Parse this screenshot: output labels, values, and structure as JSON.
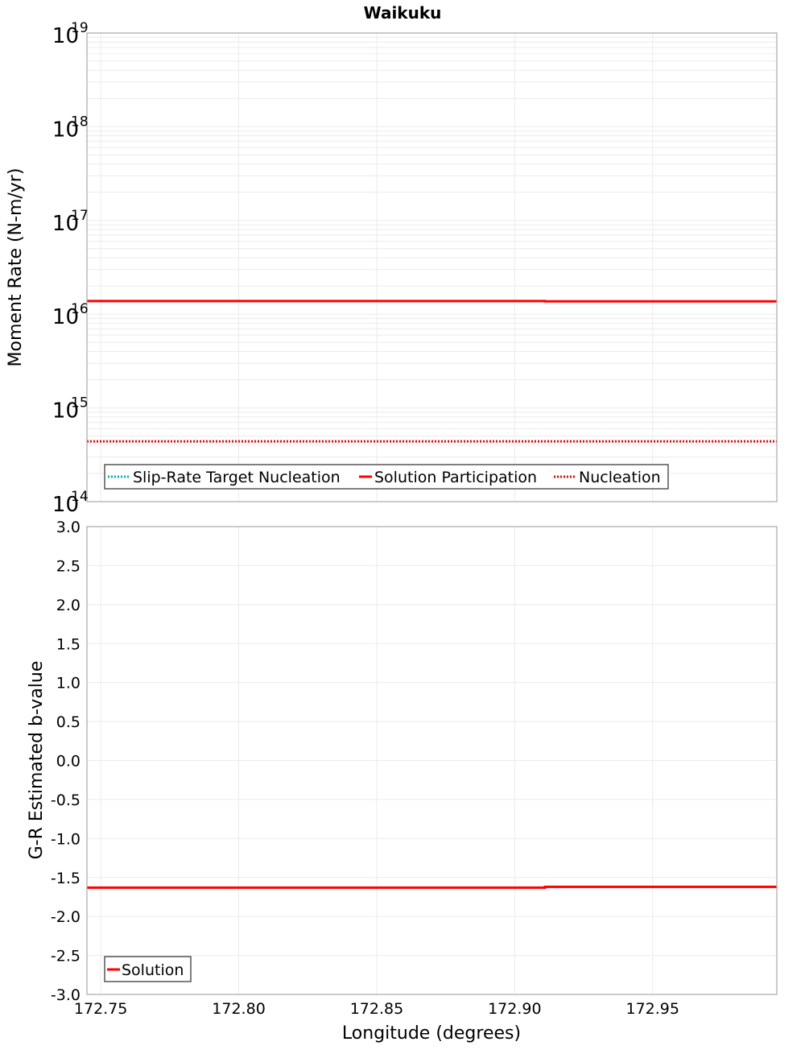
{
  "title": "Waikuku",
  "chart_data": [
    {
      "type": "line",
      "title": "Waikuku",
      "xlabel": "Longitude (degrees)",
      "ylabel": "Moment Rate (N-m/yr)",
      "yscale": "log",
      "ylim": [
        100000000000000.0,
        1e+19
      ],
      "xlim": [
        172.745,
        172.995
      ],
      "grid": true,
      "y_tick_labels": [
        {
          "base": "10",
          "exp": "19"
        },
        {
          "base": "10",
          "exp": "18"
        },
        {
          "base": "10",
          "exp": "17"
        },
        {
          "base": "10",
          "exp": "16"
        },
        {
          "base": "10",
          "exp": "15"
        },
        {
          "base": "10",
          "exp": "14"
        }
      ],
      "legend_position": "lower-left",
      "series": [
        {
          "name": "Slip-Rate Target Nucleation",
          "color": "#00b0c0",
          "style": "dotted",
          "x": [],
          "y": []
        },
        {
          "name": "Solution Participation",
          "color": "#ff0000",
          "style": "solid",
          "x": [
            172.745,
            172.911,
            172.911,
            172.995
          ],
          "y": [
            1.38e+16,
            1.38e+16,
            1.37e+16,
            1.37e+16
          ]
        },
        {
          "name": "Nucleation",
          "color": "#ff0000",
          "style": "dotted",
          "x": [
            172.745,
            172.995
          ],
          "y": [
            440000000000000.0,
            440000000000000.0
          ]
        }
      ]
    },
    {
      "type": "line",
      "xlabel": "Longitude (degrees)",
      "ylabel": "G-R Estimated b-value",
      "ylim": [
        -3.0,
        3.0
      ],
      "xlim": [
        172.745,
        172.995
      ],
      "grid": true,
      "y_ticks": [
        "3.0",
        "2.5",
        "2.0",
        "1.5",
        "1.0",
        "0.5",
        "0.0",
        "-0.5",
        "-1.0",
        "-1.5",
        "-2.0",
        "-2.5",
        "-3.0"
      ],
      "x_ticks": [
        "172.75",
        "172.80",
        "172.85",
        "172.90",
        "172.95"
      ],
      "legend_position": "lower-left",
      "series": [
        {
          "name": "Solution",
          "color": "#ff0000",
          "style": "solid",
          "x": [
            172.745,
            172.911,
            172.911,
            172.995
          ],
          "y": [
            -1.63,
            -1.63,
            -1.62,
            -1.62
          ]
        }
      ]
    }
  ],
  "top": {
    "ylabel": "Moment Rate (N-m/yr)",
    "legend": [
      "Slip-Rate Target Nucleation",
      "Solution Participation",
      "Nucleation"
    ]
  },
  "bottom": {
    "ylabel": "G-R Estimated b-value",
    "xlabel": "Longitude (degrees)",
    "legend": [
      "Solution"
    ]
  }
}
